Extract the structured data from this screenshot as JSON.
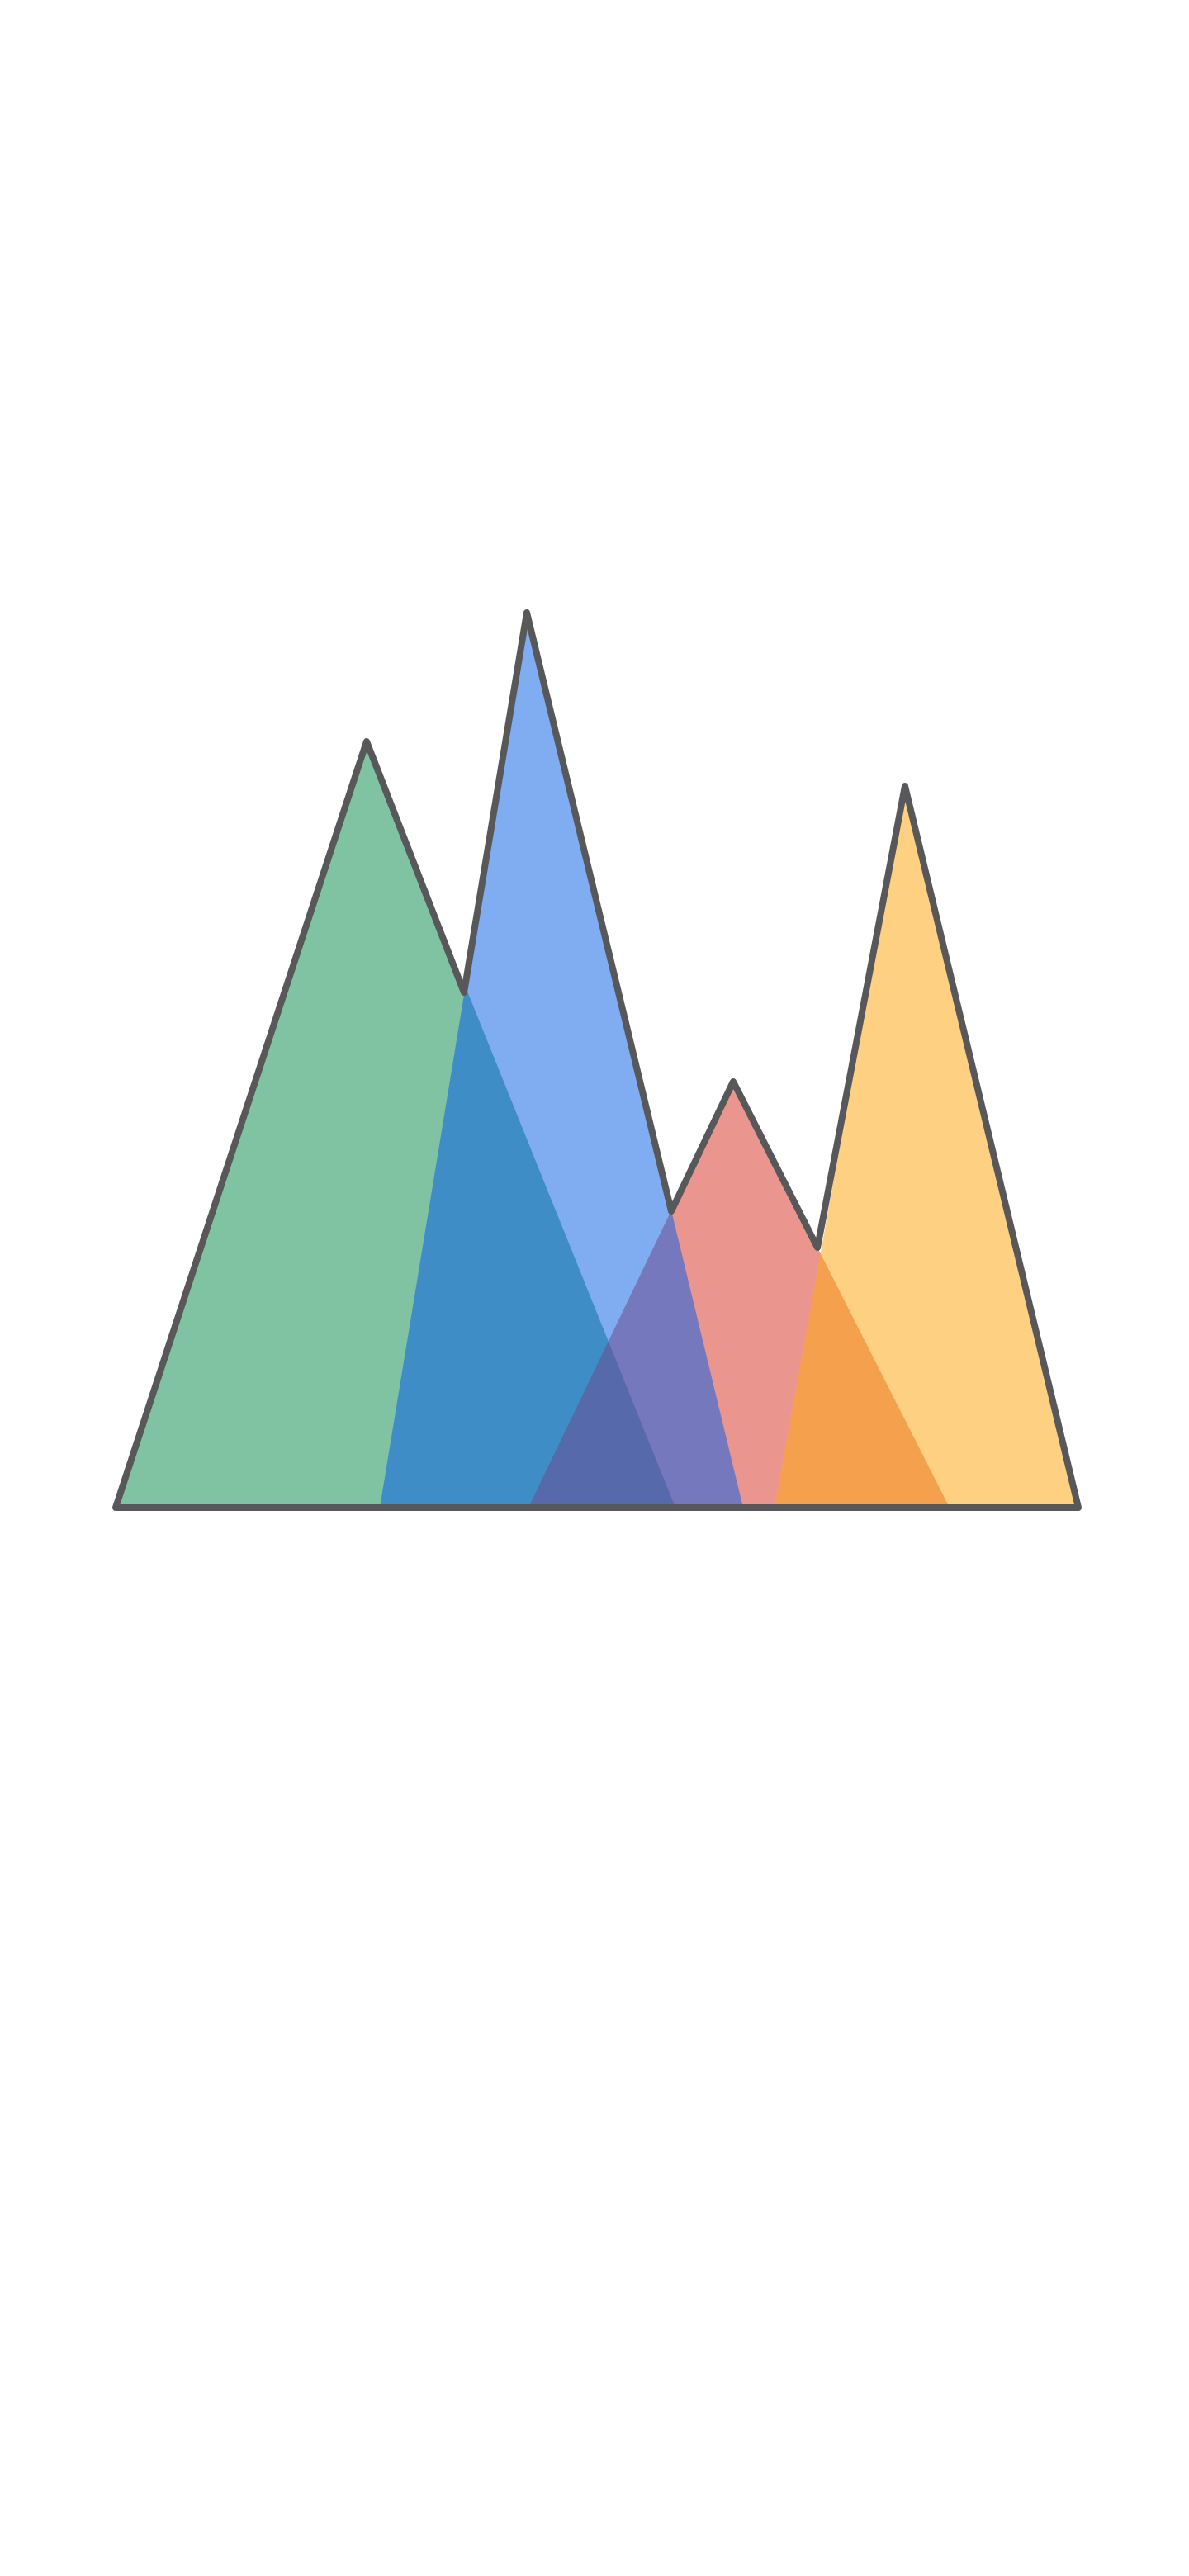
{
  "illustration": {
    "name": "mountains-logo",
    "outline_color": "#58585a",
    "background": "#ffffff",
    "peaks": [
      {
        "name": "green-peak",
        "color": "#7fc3a3"
      },
      {
        "name": "blue-peak",
        "color": "#80acf2"
      },
      {
        "name": "pink-peak",
        "color": "#ea958e"
      },
      {
        "name": "yellow-peak",
        "color": "#fed182"
      }
    ],
    "overlaps": [
      {
        "name": "green-blue-overlap",
        "color": "#3f8dc6"
      },
      {
        "name": "blue-pink-overlap",
        "color": "#7578bc"
      },
      {
        "name": "green-blue-pink-overlap",
        "color": "#5669aa"
      },
      {
        "name": "pink-yellow-overlap",
        "color": "#f4a04c"
      }
    ]
  }
}
